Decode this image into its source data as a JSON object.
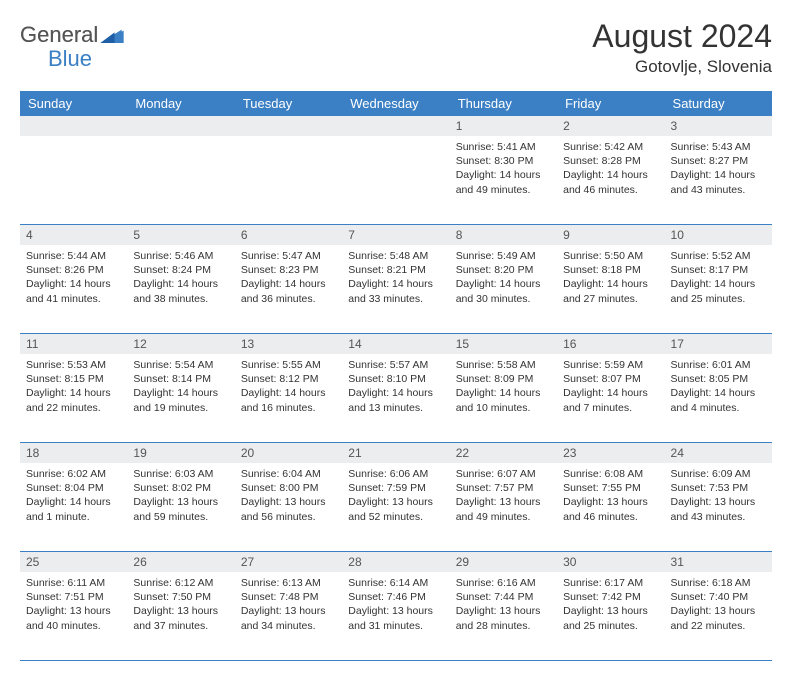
{
  "brand": {
    "general": "General",
    "blue": "Blue"
  },
  "colors": {
    "header_bg": "#3b7fc4",
    "header_text": "#ffffff",
    "daynum_bg": "#ecedee",
    "body_text": "#333333",
    "border": "#3b7fc4",
    "logo_blue": "#3b7fc4",
    "logo_gray": "#555555"
  },
  "title": {
    "month": "August 2024",
    "location": "Gotovlje, Slovenia"
  },
  "weekdays": [
    "Sunday",
    "Monday",
    "Tuesday",
    "Wednesday",
    "Thursday",
    "Friday",
    "Saturday"
  ],
  "weeks": [
    {
      "nums": [
        "",
        "",
        "",
        "",
        "1",
        "2",
        "3"
      ],
      "cells": [
        null,
        null,
        null,
        null,
        {
          "sunrise": "Sunrise: 5:41 AM",
          "sunset": "Sunset: 8:30 PM",
          "day1": "Daylight: 14 hours",
          "day2": "and 49 minutes."
        },
        {
          "sunrise": "Sunrise: 5:42 AM",
          "sunset": "Sunset: 8:28 PM",
          "day1": "Daylight: 14 hours",
          "day2": "and 46 minutes."
        },
        {
          "sunrise": "Sunrise: 5:43 AM",
          "sunset": "Sunset: 8:27 PM",
          "day1": "Daylight: 14 hours",
          "day2": "and 43 minutes."
        }
      ]
    },
    {
      "nums": [
        "4",
        "5",
        "6",
        "7",
        "8",
        "9",
        "10"
      ],
      "cells": [
        {
          "sunrise": "Sunrise: 5:44 AM",
          "sunset": "Sunset: 8:26 PM",
          "day1": "Daylight: 14 hours",
          "day2": "and 41 minutes."
        },
        {
          "sunrise": "Sunrise: 5:46 AM",
          "sunset": "Sunset: 8:24 PM",
          "day1": "Daylight: 14 hours",
          "day2": "and 38 minutes."
        },
        {
          "sunrise": "Sunrise: 5:47 AM",
          "sunset": "Sunset: 8:23 PM",
          "day1": "Daylight: 14 hours",
          "day2": "and 36 minutes."
        },
        {
          "sunrise": "Sunrise: 5:48 AM",
          "sunset": "Sunset: 8:21 PM",
          "day1": "Daylight: 14 hours",
          "day2": "and 33 minutes."
        },
        {
          "sunrise": "Sunrise: 5:49 AM",
          "sunset": "Sunset: 8:20 PM",
          "day1": "Daylight: 14 hours",
          "day2": "and 30 minutes."
        },
        {
          "sunrise": "Sunrise: 5:50 AM",
          "sunset": "Sunset: 8:18 PM",
          "day1": "Daylight: 14 hours",
          "day2": "and 27 minutes."
        },
        {
          "sunrise": "Sunrise: 5:52 AM",
          "sunset": "Sunset: 8:17 PM",
          "day1": "Daylight: 14 hours",
          "day2": "and 25 minutes."
        }
      ]
    },
    {
      "nums": [
        "11",
        "12",
        "13",
        "14",
        "15",
        "16",
        "17"
      ],
      "cells": [
        {
          "sunrise": "Sunrise: 5:53 AM",
          "sunset": "Sunset: 8:15 PM",
          "day1": "Daylight: 14 hours",
          "day2": "and 22 minutes."
        },
        {
          "sunrise": "Sunrise: 5:54 AM",
          "sunset": "Sunset: 8:14 PM",
          "day1": "Daylight: 14 hours",
          "day2": "and 19 minutes."
        },
        {
          "sunrise": "Sunrise: 5:55 AM",
          "sunset": "Sunset: 8:12 PM",
          "day1": "Daylight: 14 hours",
          "day2": "and 16 minutes."
        },
        {
          "sunrise": "Sunrise: 5:57 AM",
          "sunset": "Sunset: 8:10 PM",
          "day1": "Daylight: 14 hours",
          "day2": "and 13 minutes."
        },
        {
          "sunrise": "Sunrise: 5:58 AM",
          "sunset": "Sunset: 8:09 PM",
          "day1": "Daylight: 14 hours",
          "day2": "and 10 minutes."
        },
        {
          "sunrise": "Sunrise: 5:59 AM",
          "sunset": "Sunset: 8:07 PM",
          "day1": "Daylight: 14 hours",
          "day2": "and 7 minutes."
        },
        {
          "sunrise": "Sunrise: 6:01 AM",
          "sunset": "Sunset: 8:05 PM",
          "day1": "Daylight: 14 hours",
          "day2": "and 4 minutes."
        }
      ]
    },
    {
      "nums": [
        "18",
        "19",
        "20",
        "21",
        "22",
        "23",
        "24"
      ],
      "cells": [
        {
          "sunrise": "Sunrise: 6:02 AM",
          "sunset": "Sunset: 8:04 PM",
          "day1": "Daylight: 14 hours",
          "day2": "and 1 minute."
        },
        {
          "sunrise": "Sunrise: 6:03 AM",
          "sunset": "Sunset: 8:02 PM",
          "day1": "Daylight: 13 hours",
          "day2": "and 59 minutes."
        },
        {
          "sunrise": "Sunrise: 6:04 AM",
          "sunset": "Sunset: 8:00 PM",
          "day1": "Daylight: 13 hours",
          "day2": "and 56 minutes."
        },
        {
          "sunrise": "Sunrise: 6:06 AM",
          "sunset": "Sunset: 7:59 PM",
          "day1": "Daylight: 13 hours",
          "day2": "and 52 minutes."
        },
        {
          "sunrise": "Sunrise: 6:07 AM",
          "sunset": "Sunset: 7:57 PM",
          "day1": "Daylight: 13 hours",
          "day2": "and 49 minutes."
        },
        {
          "sunrise": "Sunrise: 6:08 AM",
          "sunset": "Sunset: 7:55 PM",
          "day1": "Daylight: 13 hours",
          "day2": "and 46 minutes."
        },
        {
          "sunrise": "Sunrise: 6:09 AM",
          "sunset": "Sunset: 7:53 PM",
          "day1": "Daylight: 13 hours",
          "day2": "and 43 minutes."
        }
      ]
    },
    {
      "nums": [
        "25",
        "26",
        "27",
        "28",
        "29",
        "30",
        "31"
      ],
      "cells": [
        {
          "sunrise": "Sunrise: 6:11 AM",
          "sunset": "Sunset: 7:51 PM",
          "day1": "Daylight: 13 hours",
          "day2": "and 40 minutes."
        },
        {
          "sunrise": "Sunrise: 6:12 AM",
          "sunset": "Sunset: 7:50 PM",
          "day1": "Daylight: 13 hours",
          "day2": "and 37 minutes."
        },
        {
          "sunrise": "Sunrise: 6:13 AM",
          "sunset": "Sunset: 7:48 PM",
          "day1": "Daylight: 13 hours",
          "day2": "and 34 minutes."
        },
        {
          "sunrise": "Sunrise: 6:14 AM",
          "sunset": "Sunset: 7:46 PM",
          "day1": "Daylight: 13 hours",
          "day2": "and 31 minutes."
        },
        {
          "sunrise": "Sunrise: 6:16 AM",
          "sunset": "Sunset: 7:44 PM",
          "day1": "Daylight: 13 hours",
          "day2": "and 28 minutes."
        },
        {
          "sunrise": "Sunrise: 6:17 AM",
          "sunset": "Sunset: 7:42 PM",
          "day1": "Daylight: 13 hours",
          "day2": "and 25 minutes."
        },
        {
          "sunrise": "Sunrise: 6:18 AM",
          "sunset": "Sunset: 7:40 PM",
          "day1": "Daylight: 13 hours",
          "day2": "and 22 minutes."
        }
      ]
    }
  ]
}
